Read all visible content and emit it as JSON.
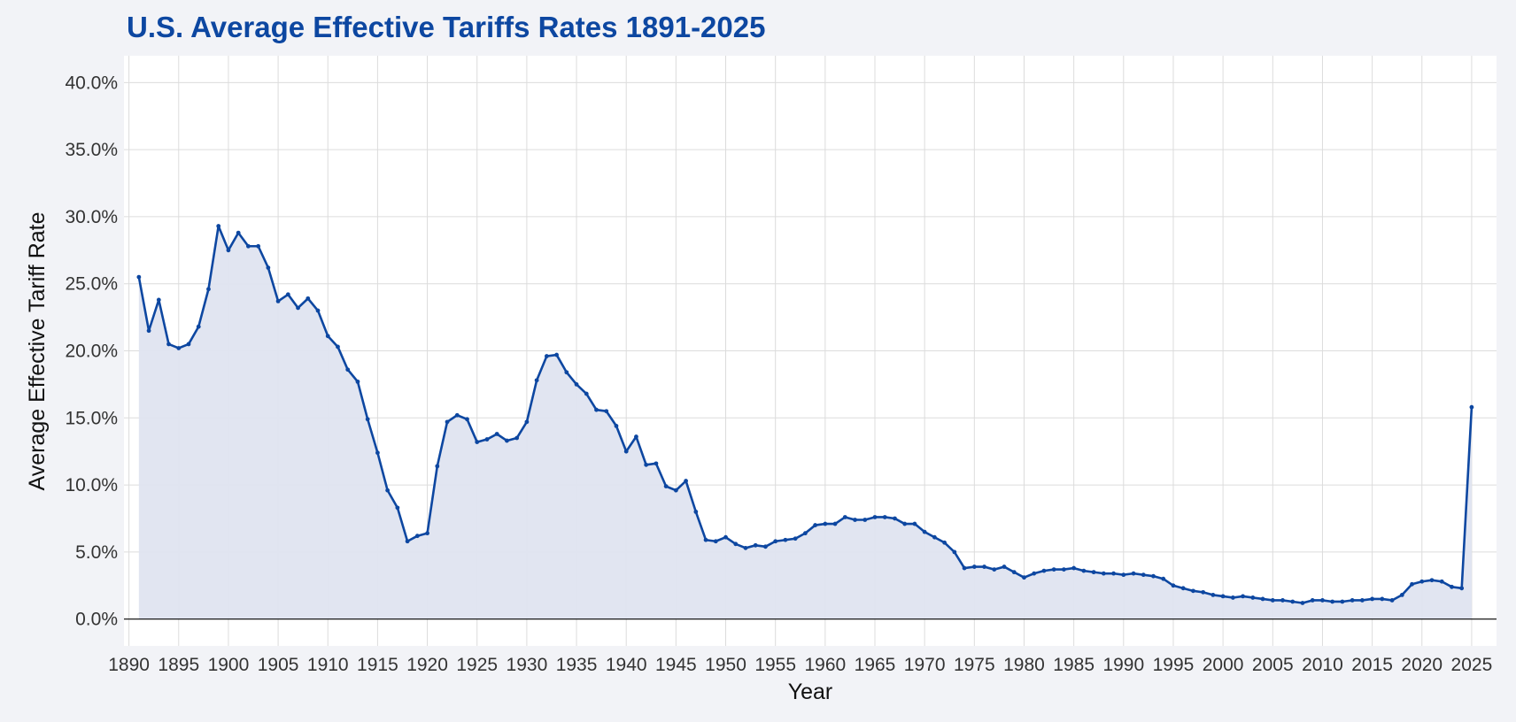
{
  "colors": {
    "page_background": "#f2f3f7",
    "plot_background": "#ffffff",
    "grid": "#dcdcdc",
    "line": "#0d47a1",
    "fill": "#dfe4f0",
    "title": "#0d47a1",
    "zero_line": "#000000"
  },
  "chart_data": {
    "type": "area",
    "title": "U.S. Average Effective Tariffs Rates 1891-2025",
    "xlabel": "Year",
    "ylabel": "Average Effective Tariff Rate",
    "xlim": [
      1889.5,
      2027.5
    ],
    "ylim": [
      -2.0,
      42.0
    ],
    "grid": true,
    "x_ticks": [
      1890,
      1895,
      1900,
      1905,
      1910,
      1915,
      1920,
      1925,
      1930,
      1935,
      1940,
      1945,
      1950,
      1955,
      1960,
      1965,
      1970,
      1975,
      1980,
      1985,
      1990,
      1995,
      2000,
      2005,
      2010,
      2015,
      2020,
      2025
    ],
    "x_tick_labels": [
      "1890",
      "1895",
      "1900",
      "1905",
      "1910",
      "1915",
      "1920",
      "1925",
      "1930",
      "1935",
      "1940",
      "1945",
      "1950",
      "1955",
      "1960",
      "1965",
      "1970",
      "1975",
      "1980",
      "1985",
      "1990",
      "1995",
      "2000",
      "2005",
      "2010",
      "2015",
      "2020",
      "2025"
    ],
    "y_ticks": [
      0,
      5,
      10,
      15,
      20,
      25,
      30,
      35,
      40
    ],
    "y_tick_labels": [
      "0.0%",
      "5.0%",
      "10.0%",
      "15.0%",
      "20.0%",
      "25.0%",
      "30.0%",
      "35.0%",
      "40.0%"
    ],
    "series": [
      {
        "name": "Average Effective Tariff Rate",
        "x": [
          1891,
          1892,
          1893,
          1894,
          1895,
          1896,
          1897,
          1898,
          1899,
          1900,
          1901,
          1902,
          1903,
          1904,
          1905,
          1906,
          1907,
          1908,
          1909,
          1910,
          1911,
          1912,
          1913,
          1914,
          1915,
          1916,
          1917,
          1918,
          1919,
          1920,
          1921,
          1922,
          1923,
          1924,
          1925,
          1926,
          1927,
          1928,
          1929,
          1930,
          1931,
          1932,
          1933,
          1934,
          1935,
          1936,
          1937,
          1938,
          1939,
          1940,
          1941,
          1942,
          1943,
          1944,
          1945,
          1946,
          1947,
          1948,
          1949,
          1950,
          1951,
          1952,
          1953,
          1954,
          1955,
          1956,
          1957,
          1958,
          1959,
          1960,
          1961,
          1962,
          1963,
          1964,
          1965,
          1966,
          1967,
          1968,
          1969,
          1970,
          1971,
          1972,
          1973,
          1974,
          1975,
          1976,
          1977,
          1978,
          1979,
          1980,
          1981,
          1982,
          1983,
          1984,
          1985,
          1986,
          1987,
          1988,
          1989,
          1990,
          1991,
          1992,
          1993,
          1994,
          1995,
          1996,
          1997,
          1998,
          1999,
          2000,
          2001,
          2002,
          2003,
          2004,
          2005,
          2006,
          2007,
          2008,
          2009,
          2010,
          2011,
          2012,
          2013,
          2014,
          2015,
          2016,
          2017,
          2018,
          2019,
          2020,
          2021,
          2022,
          2023,
          2024,
          2025
        ],
        "values": [
          25.5,
          21.5,
          23.8,
          20.5,
          20.2,
          20.5,
          21.8,
          24.6,
          29.3,
          27.5,
          28.8,
          27.8,
          27.8,
          26.2,
          23.7,
          24.2,
          23.2,
          23.9,
          23.0,
          21.1,
          20.3,
          18.6,
          17.7,
          14.9,
          12.4,
          9.6,
          8.3,
          5.8,
          6.2,
          6.4,
          11.4,
          14.7,
          15.2,
          14.9,
          13.2,
          13.4,
          13.8,
          13.3,
          13.5,
          14.7,
          17.8,
          19.6,
          19.7,
          18.4,
          17.5,
          16.8,
          15.6,
          15.5,
          14.4,
          12.5,
          13.6,
          11.5,
          11.6,
          9.9,
          9.6,
          10.3,
          8.0,
          5.9,
          5.8,
          6.1,
          5.6,
          5.3,
          5.5,
          5.4,
          5.8,
          5.9,
          6.0,
          6.4,
          7.0,
          7.1,
          7.1,
          7.6,
          7.4,
          7.4,
          7.6,
          7.6,
          7.5,
          7.1,
          7.1,
          6.5,
          6.1,
          5.7,
          5.0,
          3.8,
          3.9,
          3.9,
          3.7,
          3.9,
          3.5,
          3.1,
          3.4,
          3.6,
          3.7,
          3.7,
          3.8,
          3.6,
          3.5,
          3.4,
          3.4,
          3.3,
          3.4,
          3.3,
          3.2,
          3.0,
          2.5,
          2.3,
          2.1,
          2.0,
          1.8,
          1.7,
          1.6,
          1.7,
          1.6,
          1.5,
          1.4,
          1.4,
          1.3,
          1.2,
          1.4,
          1.4,
          1.3,
          1.3,
          1.4,
          1.4,
          1.5,
          1.5,
          1.4,
          1.8,
          2.6,
          2.8,
          2.9,
          2.8,
          2.4,
          2.3,
          15.8
        ]
      }
    ]
  }
}
